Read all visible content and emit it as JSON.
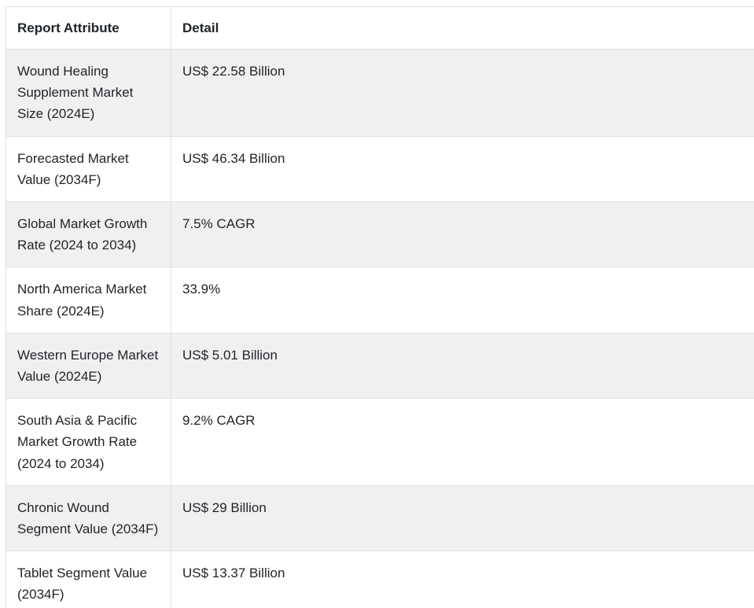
{
  "chart_data": {
    "type": "table",
    "columns": [
      "Report Attribute",
      "Detail"
    ],
    "rows": [
      [
        "Wound Healing Supplement Market Size (2024E)",
        "US$ 22.58 Billion"
      ],
      [
        "Forecasted Market Value (2034F)",
        "US$ 46.34 Billion"
      ],
      [
        "Global Market Growth Rate (2024 to 2034)",
        "7.5% CAGR"
      ],
      [
        "North America Market Share (2024E)",
        "33.9%"
      ],
      [
        "Western Europe Market Value (2024E)",
        "US$ 5.01 Billion"
      ],
      [
        "South Asia & Pacific Market Growth Rate (2024 to 2034)",
        "9.2% CAGR"
      ],
      [
        "Chronic Wound Segment Value (2034F)",
        "US$ 29 Billion"
      ],
      [
        "Tablet Segment Value (2034F)",
        "US$ 13.37 Billion"
      ]
    ],
    "layout": {
      "striping": "odd-rows-shaded",
      "grid": "horizontal-borders-and-column-divider",
      "clipped_right": true,
      "clipped_bottom": true
    }
  },
  "colors": {
    "stripe": "#f0f0f1",
    "border": "#dee2e6",
    "text_header": "#212529",
    "text_body": "#212529",
    "background": "#ffffff"
  }
}
